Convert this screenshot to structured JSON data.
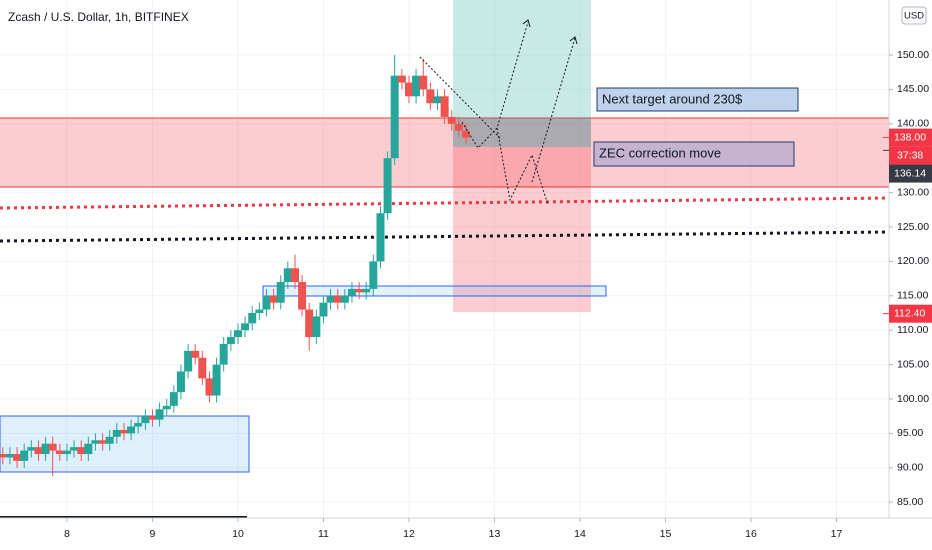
{
  "chart_data": {
    "type": "candlestick",
    "title": "Zcash / U.S. Dollar, 1h, BITFINEX",
    "currency": "USD",
    "up_color": "#26a69a",
    "down_color": "#ef5350",
    "x": [
      7.25,
      7.333,
      7.417,
      7.5,
      7.583,
      7.667,
      7.75,
      7.833,
      7.917,
      8,
      8.083,
      8.167,
      8.25,
      8.333,
      8.417,
      8.5,
      8.583,
      8.667,
      8.75,
      8.833,
      8.917,
      9,
      9.083,
      9.167,
      9.25,
      9.333,
      9.417,
      9.5,
      9.583,
      9.667,
      9.75,
      9.833,
      9.917,
      10,
      10.083,
      10.167,
      10.25,
      10.333,
      10.417,
      10.5,
      10.583,
      10.667,
      10.75,
      10.833,
      10.917,
      11,
      11.083,
      11.167,
      11.25,
      11.333,
      11.417,
      11.5,
      11.583,
      11.667,
      11.75,
      11.833,
      11.917,
      12,
      12.083,
      12.167,
      12.25,
      12.333,
      12.417,
      12.5,
      12.583,
      12.667
    ],
    "open": [
      92,
      91.5,
      92,
      91,
      92.5,
      93,
      92,
      93.5,
      92.5,
      92,
      92.5,
      93,
      92,
      93.5,
      94,
      93.5,
      94.5,
      95.5,
      95,
      96,
      96.5,
      97.5,
      97,
      98.5,
      99,
      101,
      104,
      107,
      106,
      103,
      100.5,
      105,
      108,
      109,
      110,
      111,
      112.5,
      113,
      115,
      114,
      117,
      119,
      117,
      113,
      109,
      112,
      114,
      115,
      114,
      115,
      116,
      115.5,
      116,
      120,
      127,
      135,
      147,
      146,
      144,
      147,
      145,
      143,
      144,
      141,
      140,
      139
    ],
    "high": [
      93,
      93,
      93,
      93.5,
      94,
      94,
      94.5,
      94.5,
      93.5,
      93.5,
      94,
      94,
      94.5,
      95,
      95,
      95.5,
      96.5,
      96.5,
      97,
      97.5,
      98.5,
      98.5,
      99.5,
      100,
      102,
      105,
      108,
      108,
      107,
      104,
      106,
      109,
      110,
      111,
      112,
      113.5,
      114,
      116,
      116,
      118,
      120,
      121,
      118,
      114,
      113,
      115,
      116,
      116,
      116,
      117,
      117,
      117,
      121,
      128,
      136,
      150,
      148,
      147,
      148,
      149.5,
      146,
      145,
      145,
      142,
      141,
      140
    ],
    "low": [
      90.5,
      90.5,
      90,
      90,
      91.5,
      91,
      91,
      88.8,
      91,
      91,
      91.5,
      91,
      91,
      92.5,
      92.5,
      92.5,
      93.5,
      94,
      94,
      95,
      95.5,
      96,
      96,
      97.5,
      98,
      100,
      103,
      105,
      102,
      99.5,
      99.5,
      104,
      107,
      108,
      109,
      110,
      111.5,
      112,
      113,
      113,
      116,
      116,
      112,
      107,
      108,
      111,
      113,
      113,
      113,
      114,
      114.5,
      114.5,
      115,
      119,
      126,
      134,
      145,
      143,
      143,
      144,
      142,
      142,
      140,
      139,
      138,
      137
    ],
    "close": [
      91.5,
      92,
      91,
      92.5,
      93,
      92,
      93.5,
      92.5,
      92,
      92.5,
      93,
      92,
      93.5,
      94,
      93.5,
      94.5,
      95.5,
      95,
      96,
      96.5,
      97.5,
      97,
      98.5,
      99,
      101,
      104,
      107,
      106,
      103,
      100.5,
      105,
      108,
      109,
      110,
      111,
      112.5,
      113,
      115,
      114,
      117,
      119,
      117,
      113,
      109,
      112,
      114,
      115,
      114,
      115,
      116,
      115.5,
      116,
      120,
      127,
      135,
      147,
      146,
      144,
      147,
      145,
      143,
      144,
      141,
      140,
      139,
      138
    ],
    "xlim": [
      7.217,
      17.614
    ],
    "xticks": [
      8,
      9,
      10,
      11,
      12,
      13,
      14,
      15,
      16,
      17
    ],
    "ylim": [
      82.7,
      158.0
    ],
    "yticks": [
      {
        "value": 85,
        "label": "85.00"
      },
      {
        "value": 90,
        "label": "90.00"
      },
      {
        "value": 95,
        "label": "95.00"
      },
      {
        "value": 100,
        "label": "100.00"
      },
      {
        "value": 105,
        "label": "105.00"
      },
      {
        "value": 110,
        "label": "110.00"
      },
      {
        "value": 115,
        "label": "115.00"
      },
      {
        "value": 120,
        "label": "120.00"
      },
      {
        "value": 125,
        "label": "125.00"
      },
      {
        "value": 130,
        "label": "130.00"
      },
      {
        "value": 140,
        "label": "140.00"
      },
      {
        "value": 145,
        "label": "145.00"
      },
      {
        "value": 150,
        "label": "150.00"
      }
    ],
    "grid": true,
    "price_tags": [
      {
        "value": 138,
        "label": "138.00",
        "color": "#f23645"
      },
      {
        "value": 136.14,
        "label": "136.14",
        "color": "#363a45"
      },
      {
        "value": 112.4,
        "label": "112.40",
        "color": "#f23645"
      }
    ],
    "countdown": "37:38",
    "annotations": [
      "Next target around 230$",
      "ZEC correction move"
    ]
  }
}
